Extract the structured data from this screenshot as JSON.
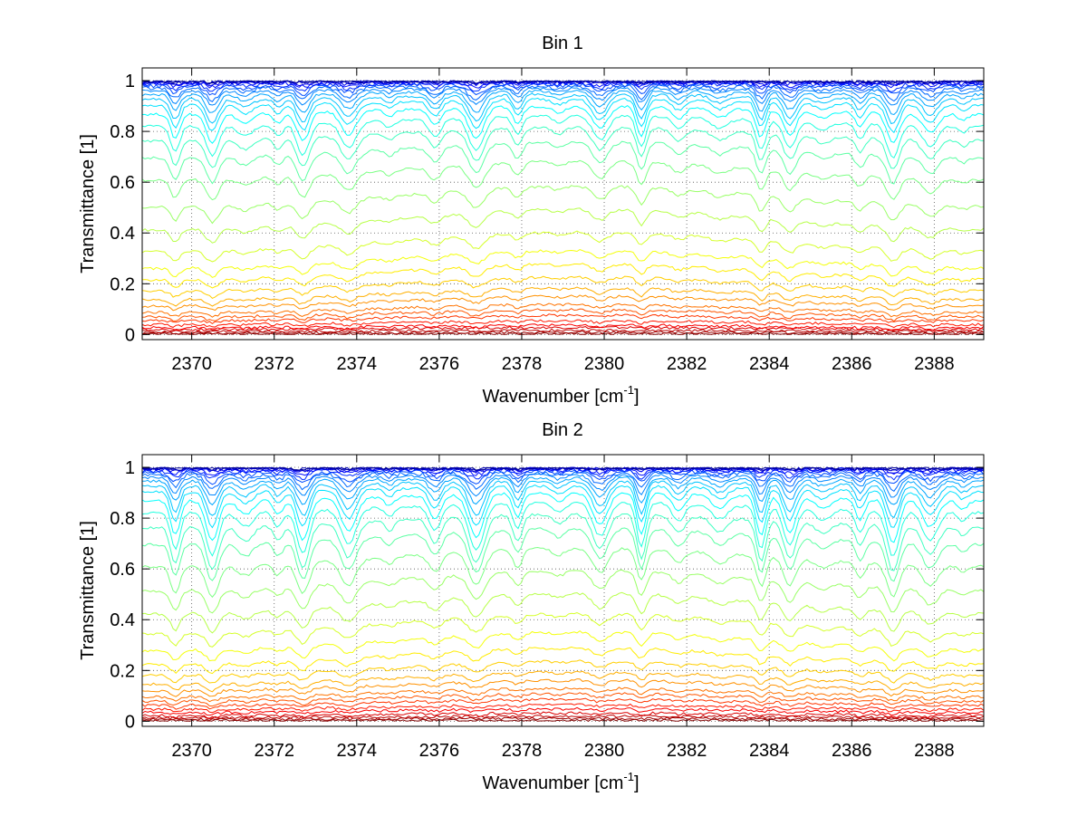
{
  "chart_data": [
    {
      "type": "line",
      "title": "Bin 1",
      "xlabel": "Wavenumber [cm",
      "xlabel_sup": "-1",
      "xlabel_end": "]",
      "ylabel": "Transmittance [1]",
      "xlim": [
        2368.8,
        2389.2
      ],
      "ylim": [
        -0.02,
        1.05
      ],
      "x_ticks": [
        2370,
        2372,
        2374,
        2376,
        2378,
        2380,
        2382,
        2384,
        2386,
        2388
      ],
      "y_ticks": [
        0,
        0.2,
        0.4,
        0.6,
        0.8,
        1
      ],
      "y_tick_labels": [
        "0",
        "0.2",
        "0.4",
        "0.6",
        "0.8",
        "1"
      ],
      "grid": true,
      "colormap": "jet",
      "line_centers": [
        2369.6,
        2370.5,
        2371.3,
        2372.1,
        2372.7,
        2373.8,
        2374.8,
        2375.9,
        2376.9,
        2377.9,
        2378.9,
        2379.9,
        2380.9,
        2381.8,
        2382.8,
        2383.8,
        2384.5,
        2385.3,
        2386.2,
        2387.0,
        2387.9,
        2388.7
      ],
      "curves": [
        {
          "base": 0.002,
          "depth": 0.0
        },
        {
          "base": 0.008,
          "depth": 0.0
        },
        {
          "base": 0.015,
          "depth": 0.0
        },
        {
          "base": 0.025,
          "depth": 0.0
        },
        {
          "base": 0.035,
          "depth": 0.01
        },
        {
          "base": 0.05,
          "depth": 0.01
        },
        {
          "base": 0.07,
          "depth": 0.01
        },
        {
          "base": 0.09,
          "depth": 0.02
        },
        {
          "base": 0.11,
          "depth": 0.02
        },
        {
          "base": 0.14,
          "depth": 0.02
        },
        {
          "base": 0.17,
          "depth": 0.03
        },
        {
          "base": 0.21,
          "depth": 0.03
        },
        {
          "base": 0.26,
          "depth": 0.04
        },
        {
          "base": 0.31,
          "depth": 0.04
        },
        {
          "base": 0.38,
          "depth": 0.05
        },
        {
          "base": 0.47,
          "depth": 0.06
        },
        {
          "base": 0.56,
          "depth": 0.07
        },
        {
          "base": 0.66,
          "depth": 0.09
        },
        {
          "base": 0.74,
          "depth": 0.11
        },
        {
          "base": 0.8,
          "depth": 0.12
        },
        {
          "base": 0.85,
          "depth": 0.13
        },
        {
          "base": 0.89,
          "depth": 0.12
        },
        {
          "base": 0.92,
          "depth": 0.11
        },
        {
          "base": 0.94,
          "depth": 0.1
        },
        {
          "base": 0.955,
          "depth": 0.08
        },
        {
          "base": 0.967,
          "depth": 0.06
        },
        {
          "base": 0.976,
          "depth": 0.05
        },
        {
          "base": 0.983,
          "depth": 0.035
        },
        {
          "base": 0.988,
          "depth": 0.025
        },
        {
          "base": 0.992,
          "depth": 0.015
        },
        {
          "base": 0.995,
          "depth": 0.01
        },
        {
          "base": 0.997,
          "depth": 0.006
        },
        {
          "base": 0.998,
          "depth": 0.004
        },
        {
          "base": 0.999,
          "depth": 0.003
        }
      ]
    },
    {
      "type": "line",
      "title": "Bin 2",
      "xlabel": "Wavenumber [cm",
      "xlabel_sup": "-1",
      "xlabel_end": "]",
      "ylabel": "Transmittance [1]",
      "xlim": [
        2368.8,
        2389.2
      ],
      "ylim": [
        -0.02,
        1.05
      ],
      "x_ticks": [
        2370,
        2372,
        2374,
        2376,
        2378,
        2380,
        2382,
        2384,
        2386,
        2388
      ],
      "y_ticks": [
        0,
        0.2,
        0.4,
        0.6,
        0.8,
        1
      ],
      "y_tick_labels": [
        "0",
        "0.2",
        "0.4",
        "0.6",
        "0.8",
        "1"
      ],
      "grid": true,
      "colormap": "jet",
      "line_centers": [
        2369.6,
        2370.5,
        2371.3,
        2372.1,
        2372.7,
        2373.8,
        2374.8,
        2375.9,
        2376.9,
        2377.9,
        2378.9,
        2379.9,
        2380.9,
        2381.8,
        2382.8,
        2383.8,
        2384.5,
        2385.3,
        2386.2,
        2387.0,
        2387.9,
        2388.7
      ],
      "curves": [
        {
          "base": 0.003,
          "depth": 0.0
        },
        {
          "base": 0.01,
          "depth": 0.0
        },
        {
          "base": 0.018,
          "depth": 0.0
        },
        {
          "base": 0.03,
          "depth": 0.01
        },
        {
          "base": 0.045,
          "depth": 0.01
        },
        {
          "base": 0.06,
          "depth": 0.01
        },
        {
          "base": 0.08,
          "depth": 0.015
        },
        {
          "base": 0.1,
          "depth": 0.02
        },
        {
          "base": 0.12,
          "depth": 0.02
        },
        {
          "base": 0.15,
          "depth": 0.025
        },
        {
          "base": 0.18,
          "depth": 0.03
        },
        {
          "base": 0.22,
          "depth": 0.035
        },
        {
          "base": 0.27,
          "depth": 0.04
        },
        {
          "base": 0.33,
          "depth": 0.05
        },
        {
          "base": 0.4,
          "depth": 0.06
        },
        {
          "base": 0.48,
          "depth": 0.08
        },
        {
          "base": 0.57,
          "depth": 0.1
        },
        {
          "base": 0.66,
          "depth": 0.13
        },
        {
          "base": 0.74,
          "depth": 0.16
        },
        {
          "base": 0.8,
          "depth": 0.18
        },
        {
          "base": 0.85,
          "depth": 0.18
        },
        {
          "base": 0.89,
          "depth": 0.17
        },
        {
          "base": 0.92,
          "depth": 0.15
        },
        {
          "base": 0.94,
          "depth": 0.13
        },
        {
          "base": 0.955,
          "depth": 0.1
        },
        {
          "base": 0.967,
          "depth": 0.08
        },
        {
          "base": 0.976,
          "depth": 0.06
        },
        {
          "base": 0.983,
          "depth": 0.045
        },
        {
          "base": 0.988,
          "depth": 0.03
        },
        {
          "base": 0.992,
          "depth": 0.02
        },
        {
          "base": 0.995,
          "depth": 0.012
        },
        {
          "base": 0.997,
          "depth": 0.008
        },
        {
          "base": 0.998,
          "depth": 0.005
        },
        {
          "base": 0.999,
          "depth": 0.003
        }
      ]
    }
  ]
}
